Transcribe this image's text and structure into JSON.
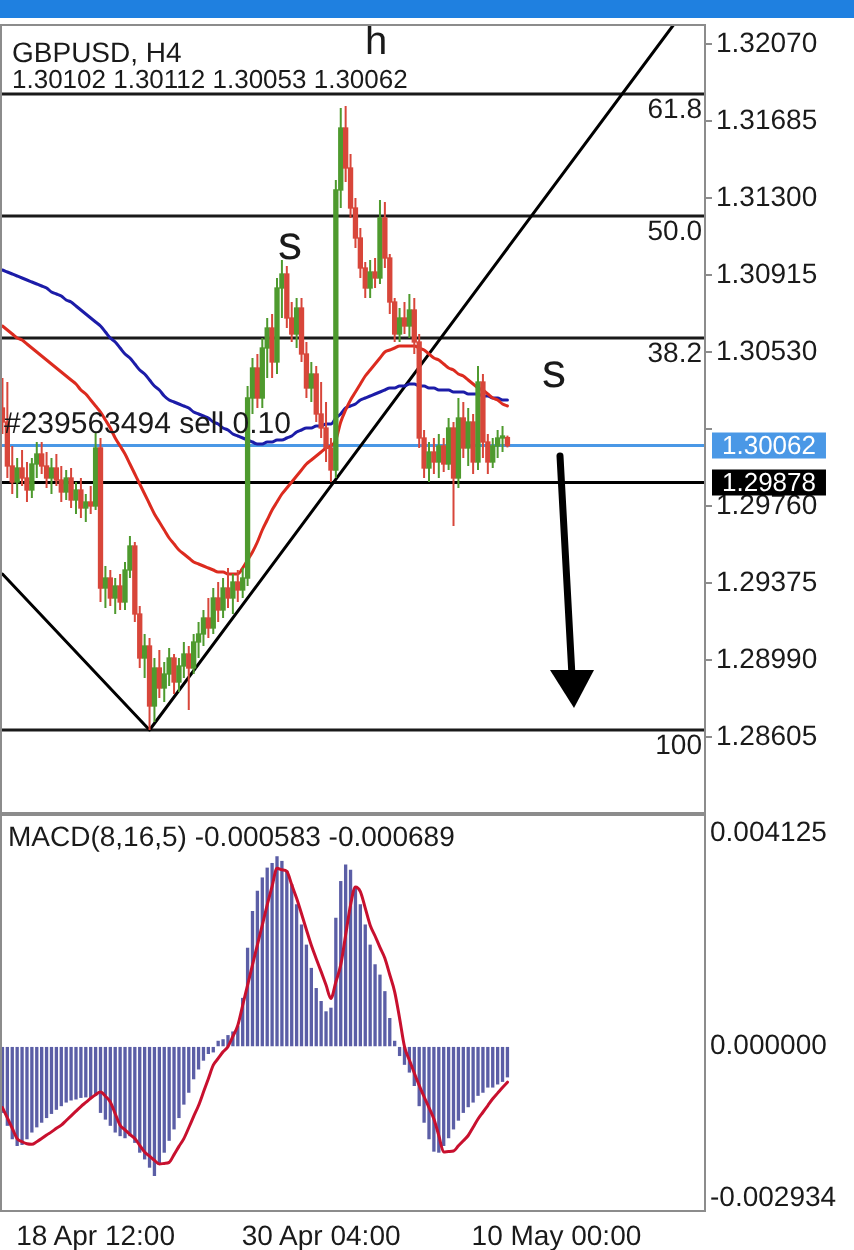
{
  "chart_data": [
    {
      "type": "candlestick",
      "title": "GBPUSD, H4",
      "subtitle": "1.30102 1.30112 1.30053 1.30062",
      "categories": [
        null,
        null,
        null,
        null,
        null,
        null,
        null,
        null,
        null,
        null,
        null,
        null,
        null,
        null,
        null,
        null,
        null,
        null,
        null,
        null,
        null,
        null,
        null,
        null,
        null,
        null,
        null,
        null,
        null,
        null,
        null,
        null,
        null,
        null,
        null,
        null,
        null,
        null,
        null,
        null,
        null,
        null,
        null,
        null,
        null,
        null,
        null,
        null,
        null,
        null,
        null,
        null,
        null,
        null,
        null,
        null,
        null,
        null,
        null,
        null,
        null,
        null,
        null,
        null,
        null,
        null,
        null,
        null,
        null,
        null,
        null,
        null,
        null,
        null,
        null,
        null,
        null,
        null,
        null,
        null,
        null,
        null,
        null,
        null,
        null,
        null,
        null,
        null,
        null,
        null,
        null,
        null,
        null,
        null,
        null,
        null,
        null,
        null,
        null,
        null,
        null,
        null,
        null,
        null,
        null,
        null,
        null,
        null,
        null,
        null,
        null,
        null,
        null,
        null,
        null,
        null,
        null,
        null,
        null,
        null,
        null,
        null,
        null,
        null,
        null,
        null,
        null,
        null,
        null,
        null,
        null,
        null,
        null,
        null,
        null,
        null,
        null,
        null,
        null,
        null,
        null,
        null,
        null,
        null
      ],
      "ohlc": [
        [
          1.3025,
          1.304,
          1.3012,
          1.3018
        ],
        [
          1.3018,
          1.3038,
          1.299,
          1.2996
        ],
        [
          1.2996,
          1.3006,
          1.2982,
          1.2988
        ],
        [
          1.2988,
          1.3,
          1.298,
          1.2995
        ],
        [
          1.2995,
          1.3004,
          1.2986,
          1.299
        ],
        [
          1.299,
          1.2998,
          1.2978,
          1.2984
        ],
        [
          1.2984,
          1.3,
          1.298,
          1.2997
        ],
        [
          1.2997,
          1.3008,
          1.299,
          1.3002
        ],
        [
          1.3002,
          1.3008,
          1.2992,
          1.2996
        ],
        [
          1.2996,
          1.3003,
          1.2985,
          1.299
        ],
        [
          1.299,
          1.3,
          1.2982,
          1.2995
        ],
        [
          1.2995,
          1.3002,
          1.2986,
          1.2989
        ],
        [
          1.2989,
          1.2996,
          1.2978,
          1.2983
        ],
        [
          1.2983,
          1.2994,
          1.2979,
          1.299
        ],
        [
          1.299,
          1.2995,
          1.2975,
          1.2979
        ],
        [
          1.2979,
          1.2988,
          1.2972,
          1.2984
        ],
        [
          1.2984,
          1.299,
          1.297,
          1.2975
        ],
        [
          1.2975,
          1.2982,
          1.2968,
          1.2978
        ],
        [
          1.2978,
          1.2986,
          1.2972,
          1.2976
        ],
        [
          1.2976,
          1.3013,
          1.2974,
          1.3005
        ],
        [
          1.3005,
          1.301,
          1.2928,
          1.2935
        ],
        [
          1.2935,
          1.2946,
          1.2925,
          1.294
        ],
        [
          1.294,
          1.2944,
          1.2926,
          1.293
        ],
        [
          1.293,
          1.294,
          1.2922,
          1.2936
        ],
        [
          1.2936,
          1.2942,
          1.2924,
          1.2928
        ],
        [
          1.2928,
          1.2948,
          1.2924,
          1.2944
        ],
        [
          1.2944,
          1.2961,
          1.294,
          1.2956
        ],
        [
          1.2956,
          1.2958,
          1.2918,
          1.2922
        ],
        [
          1.2922,
          1.2926,
          1.2895,
          1.29
        ],
        [
          1.29,
          1.2912,
          1.289,
          1.2906
        ],
        [
          1.2906,
          1.291,
          1.2864,
          1.2876
        ],
        [
          1.2876,
          1.29,
          1.2868,
          1.2895
        ],
        [
          1.2895,
          1.2904,
          1.288,
          1.2885
        ],
        [
          1.2885,
          1.2898,
          1.2878,
          1.2892
        ],
        [
          1.2892,
          1.2905,
          1.2886,
          1.29
        ],
        [
          1.29,
          1.2902,
          1.2882,
          1.2888
        ],
        [
          1.2888,
          1.29,
          1.2883,
          1.2896
        ],
        [
          1.2896,
          1.2908,
          1.289,
          1.2902
        ],
        [
          1.2902,
          1.2906,
          1.2874,
          1.2895
        ],
        [
          1.2895,
          1.2912,
          1.2892,
          1.2908
        ],
        [
          1.2908,
          1.2918,
          1.29,
          1.2912
        ],
        [
          1.2912,
          1.2924,
          1.2906,
          1.292
        ],
        [
          1.292,
          1.293,
          1.291,
          1.2915
        ],
        [
          1.2915,
          1.2935,
          1.2912,
          1.293
        ],
        [
          1.293,
          1.2938,
          1.2918,
          1.2924
        ],
        [
          1.2924,
          1.294,
          1.292,
          1.2935
        ],
        [
          1.2935,
          1.2945,
          1.2925,
          1.293
        ],
        [
          1.293,
          1.2942,
          1.2922,
          1.2938
        ],
        [
          1.2938,
          1.2944,
          1.2928,
          1.2934
        ],
        [
          1.2934,
          1.2945,
          1.293,
          1.294
        ],
        [
          1.294,
          1.3036,
          1.2936,
          1.303
        ],
        [
          1.303,
          1.305,
          1.3022,
          1.3045
        ],
        [
          1.3045,
          1.3052,
          1.3025,
          1.303
        ],
        [
          1.303,
          1.306,
          1.3025,
          1.3055
        ],
        [
          1.3055,
          1.307,
          1.304,
          1.3065
        ],
        [
          1.3065,
          1.3072,
          1.304,
          1.3048
        ],
        [
          1.3048,
          1.309,
          1.3042,
          1.3085
        ],
        [
          1.3085,
          1.3099,
          1.307,
          1.3092
        ],
        [
          1.3092,
          1.3096,
          1.3065,
          1.307
        ],
        [
          1.307,
          1.3078,
          1.3058,
          1.3062
        ],
        [
          1.3062,
          1.308,
          1.3055,
          1.3075
        ],
        [
          1.3075,
          1.308,
          1.3048,
          1.3052
        ],
        [
          1.3052,
          1.3058,
          1.303,
          1.3035
        ],
        [
          1.3035,
          1.3048,
          1.3028,
          1.3042
        ],
        [
          1.3042,
          1.3046,
          1.3018,
          1.3022
        ],
        [
          1.3022,
          1.3038,
          1.301,
          1.3015
        ],
        [
          1.3015,
          1.3028,
          1.2998,
          1.3005
        ],
        [
          1.3005,
          1.301,
          1.2988,
          1.2994
        ],
        [
          1.2994,
          1.3139,
          1.299,
          1.3134
        ],
        [
          1.3134,
          1.3175,
          1.3125,
          1.3165
        ],
        [
          1.3165,
          1.3176,
          1.3138,
          1.3145
        ],
        [
          1.3145,
          1.3152,
          1.312,
          1.3125
        ],
        [
          1.3125,
          1.313,
          1.3105,
          1.311
        ],
        [
          1.311,
          1.3115,
          1.309,
          1.3095
        ],
        [
          1.3095,
          1.3098,
          1.308,
          1.3085
        ],
        [
          1.3085,
          1.3099,
          1.308,
          1.3093
        ],
        [
          1.3093,
          1.31,
          1.3085,
          1.309
        ],
        [
          1.309,
          1.3129,
          1.3087,
          1.312
        ],
        [
          1.312,
          1.3128,
          1.3095,
          1.31
        ],
        [
          1.31,
          1.3102,
          1.3072,
          1.3078
        ],
        [
          1.3078,
          1.308,
          1.3058,
          1.3062
        ],
        [
          1.3062,
          1.3075,
          1.3058,
          1.307
        ],
        [
          1.307,
          1.3078,
          1.3062,
          1.3066
        ],
        [
          1.3066,
          1.3082,
          1.306,
          1.3074
        ],
        [
          1.3074,
          1.308,
          1.3052,
          1.3058
        ],
        [
          1.3058,
          1.3062,
          1.3005,
          1.301
        ],
        [
          1.301,
          1.3014,
          1.299,
          1.2995
        ],
        [
          1.2995,
          1.3008,
          1.2988,
          1.3003
        ],
        [
          1.3003,
          1.301,
          1.2992,
          1.2998
        ],
        [
          1.2998,
          1.3012,
          1.299,
          1.3006
        ],
        [
          1.3006,
          1.301,
          1.2993,
          1.2997
        ],
        [
          1.2997,
          1.302,
          1.2994,
          1.3015
        ],
        [
          1.3015,
          1.3018,
          1.2966,
          1.299
        ],
        [
          1.299,
          1.303,
          1.2985,
          1.302
        ],
        [
          1.302,
          1.3028,
          1.3,
          1.3005
        ],
        [
          1.3005,
          1.3025,
          1.2996,
          1.3018
        ],
        [
          1.3018,
          1.3022,
          1.2992,
          1.2998
        ],
        [
          1.2998,
          1.3046,
          1.2994,
          1.3038
        ],
        [
          1.3038,
          1.3042,
          1.3,
          1.3008
        ],
        [
          1.3008,
          1.3012,
          1.2992,
          1.2998
        ],
        [
          1.2998,
          1.301,
          1.2995,
          1.3006
        ],
        [
          1.3006,
          1.3014,
          1.3,
          1.301
        ],
        [
          1.301,
          1.3016,
          1.3003,
          1.30102
        ],
        [
          1.30102,
          1.30112,
          1.30053,
          1.30062
        ],
        null,
        null,
        null,
        null,
        null,
        null,
        null,
        null,
        null,
        null,
        null,
        null,
        null,
        null,
        null,
        null,
        null,
        null,
        null,
        null,
        null,
        null,
        null,
        null,
        null,
        null,
        null,
        null,
        null,
        null,
        null,
        null,
        null,
        null,
        null,
        null,
        null,
        null,
        null,
        null
      ],
      "colors": [
        "#d8463a",
        "#d8463a",
        "#d8463a",
        "#4e9a2e",
        "#d8463a",
        "#d8463a",
        "#4e9a2e",
        "#4e9a2e",
        "#d8463a",
        "#d8463a",
        "#4e9a2e",
        "#d8463a",
        "#d8463a",
        "#4e9a2e",
        "#d8463a",
        "#4e9a2e",
        "#d8463a",
        "#4e9a2e",
        "#d8463a",
        "#4e9a2e",
        "#d8463a",
        "#4e9a2e",
        "#d8463a",
        "#4e9a2e",
        "#d8463a",
        "#4e9a2e",
        "#4e9a2e",
        "#d8463a",
        "#d8463a",
        "#4e9a2e",
        "#d8463a",
        "#4e9a2e",
        "#d8463a",
        "#4e9a2e",
        "#4e9a2e",
        "#d8463a",
        "#4e9a2e",
        "#4e9a2e",
        "#d8463a",
        "#4e9a2e",
        "#4e9a2e",
        "#4e9a2e",
        "#d8463a",
        "#4e9a2e",
        "#d8463a",
        "#4e9a2e",
        "#d8463a",
        "#4e9a2e",
        "#d8463a",
        "#4e9a2e",
        "#4e9a2e",
        "#4e9a2e",
        "#d8463a",
        "#4e9a2e",
        "#4e9a2e",
        "#d8463a",
        "#4e9a2e",
        "#4e9a2e",
        "#d8463a",
        "#d8463a",
        "#4e9a2e",
        "#d8463a",
        "#d8463a",
        "#4e9a2e",
        "#d8463a",
        "#d8463a",
        "#d8463a",
        "#d8463a",
        "#4e9a2e",
        "#4e9a2e",
        "#d8463a",
        "#d8463a",
        "#d8463a",
        "#d8463a",
        "#d8463a",
        "#4e9a2e",
        "#d8463a",
        "#4e9a2e",
        "#d8463a",
        "#d8463a",
        "#d8463a",
        "#4e9a2e",
        "#d8463a",
        "#4e9a2e",
        "#d8463a",
        "#d8463a",
        "#d8463a",
        "#4e9a2e",
        "#d8463a",
        "#4e9a2e",
        "#d8463a",
        "#4e9a2e",
        "#d8463a",
        "#4e9a2e",
        "#d8463a",
        "#4e9a2e",
        "#d8463a",
        "#4e9a2e",
        "#d8463a",
        "#d8463a",
        "#4e9a2e",
        "#4e9a2e",
        "#4e9a2e",
        "#d8463a",
        null,
        null,
        null,
        null,
        null,
        null,
        null,
        null,
        null,
        null,
        null,
        null,
        null,
        null,
        null,
        null,
        null,
        null,
        null,
        null,
        null,
        null,
        null,
        null,
        null,
        null,
        null,
        null,
        null,
        null,
        null,
        null,
        null,
        null,
        null,
        null,
        null,
        null,
        null,
        null
      ],
      "series": [
        {
          "type": "line",
          "color": "#dc2b1f",
          "values": [
            1.3066,
            1.3064,
            1.3062,
            1.306,
            1.3059,
            1.3057,
            1.3055,
            1.3053,
            1.3051,
            1.3049,
            1.3047,
            1.3045,
            1.3043,
            1.3041,
            1.3039,
            1.3037,
            1.3034,
            1.3032,
            1.3029,
            1.3026,
            1.3023,
            1.3019,
            1.3015,
            1.301,
            1.3006,
            1.3002,
            1.2997,
            1.2992,
            1.2987,
            1.2982,
            1.2977,
            1.2972,
            1.2968,
            1.2964,
            1.296,
            1.2957,
            1.2954,
            1.2952,
            1.295,
            1.2948,
            1.2947,
            1.2946,
            1.2945,
            1.2944,
            1.2943,
            1.2943,
            1.2942,
            1.2942,
            1.2942,
            1.2945,
            1.2949,
            1.2953,
            1.2958,
            1.2964,
            1.2969,
            1.2974,
            1.2978,
            1.2982,
            1.2985,
            1.2988,
            1.2991,
            1.2994,
            1.2997,
            1.2999,
            1.3001,
            1.3003,
            1.3005,
            1.3006,
            1.3009,
            1.3018,
            1.3024,
            1.3029,
            1.3033,
            1.3037,
            1.3041,
            1.3044,
            1.3047,
            1.305,
            1.3053,
            1.3054,
            1.3055,
            1.3056,
            1.3056,
            1.3056,
            1.3056,
            1.3055,
            1.3054,
            1.3052,
            1.305,
            1.3049,
            1.3047,
            1.3045,
            1.3044,
            1.3042,
            1.3041,
            1.3039,
            1.3037,
            1.3035,
            1.3034,
            1.3032,
            1.303,
            1.3029,
            1.3027,
            1.3026,
            null,
            null,
            null,
            null,
            null,
            null,
            null,
            null,
            null,
            null,
            null,
            null,
            null,
            null,
            null,
            null,
            null,
            null,
            null,
            null,
            null,
            null,
            null,
            null,
            null,
            null,
            null,
            null,
            null,
            null,
            null,
            null,
            null,
            null,
            null,
            null,
            null,
            null,
            null,
            null
          ]
        },
        {
          "type": "line",
          "color": "#1c1ca8",
          "values": [
            1.3094,
            1.3093,
            1.3092,
            1.3091,
            1.309,
            1.3089,
            1.3088,
            1.3087,
            1.3086,
            1.3085,
            1.3083,
            1.3082,
            1.3081,
            1.3079,
            1.3078,
            1.3076,
            1.3074,
            1.3072,
            1.307,
            1.3068,
            1.3066,
            1.3063,
            1.306,
            1.3058,
            1.3055,
            1.3052,
            1.305,
            1.3047,
            1.3044,
            1.3042,
            1.3039,
            1.3036,
            1.3034,
            1.3031,
            1.3029,
            1.3028,
            1.3027,
            1.3026,
            1.3025,
            1.3023,
            1.3022,
            1.3021,
            1.302,
            1.3018,
            1.3017,
            1.3015,
            1.3014,
            1.3012,
            1.3011,
            1.301,
            1.3009,
            1.3008,
            1.3007,
            1.3007,
            1.3008,
            1.3008,
            1.3009,
            1.3009,
            1.301,
            1.3011,
            1.3013,
            1.3014,
            1.3015,
            1.3015,
            1.3016,
            1.3016,
            1.3017,
            1.3017,
            1.302,
            1.3022,
            1.3025,
            1.3026,
            1.3027,
            1.3029,
            1.303,
            1.3031,
            1.3032,
            1.3033,
            1.3034,
            1.3035,
            1.3035,
            1.3036,
            1.3036,
            1.3037,
            1.3037,
            1.3036,
            1.3036,
            1.3035,
            1.3035,
            1.3034,
            1.3034,
            1.3034,
            1.3033,
            1.3033,
            1.3033,
            1.3032,
            1.3032,
            1.3032,
            1.3031,
            1.3031,
            1.303,
            1.303,
            1.3029,
            1.3029,
            null,
            null,
            null,
            null,
            null,
            null,
            null,
            null,
            null,
            null,
            null,
            null,
            null,
            null,
            null,
            null,
            null,
            null,
            null,
            null,
            null,
            null,
            null,
            null,
            null,
            null,
            null,
            null,
            null,
            null,
            null,
            null,
            null,
            null,
            null,
            null,
            null,
            null,
            null,
            null
          ]
        },
        {
          "type": "line",
          "color": "#000000",
          "values": [
            1.2942,
            null,
            null,
            null,
            null,
            null,
            null,
            null,
            null,
            null,
            null,
            null,
            null,
            null,
            null,
            null,
            null,
            null,
            null,
            null,
            null,
            null,
            null,
            null,
            null,
            null,
            null,
            null,
            null,
            null,
            1.2864,
            null,
            null,
            null,
            null,
            null,
            null,
            null,
            null,
            null,
            null,
            null,
            null,
            null,
            null,
            null,
            null,
            null,
            null,
            null,
            null,
            null,
            null,
            null,
            null,
            null,
            null,
            null,
            null,
            null,
            null,
            null,
            null,
            null,
            null,
            null,
            null,
            null,
            null,
            null,
            null,
            null,
            null,
            null,
            null,
            null,
            null,
            null,
            null,
            null,
            null,
            null,
            null,
            null,
            null,
            null,
            null,
            null,
            null,
            null,
            null,
            null,
            null,
            null,
            null,
            null,
            null,
            null,
            null,
            null,
            null,
            null,
            null,
            null,
            null,
            null,
            null,
            null,
            null,
            null,
            null,
            null,
            null,
            null,
            null,
            null,
            null,
            null,
            null,
            null,
            null,
            null,
            null,
            null,
            null,
            null,
            null,
            null,
            null,
            null,
            null,
            null,
            null,
            null,
            null,
            null,
            null,
            1.3217,
            null,
            null,
            null,
            null,
            null,
            null
          ]
        }
      ],
      "ylim": [
        1.2822,
        1.3217
      ],
      "yticks": [
        {
          "value": 1.3207,
          "label": "1.32070"
        },
        1.31685,
        {
          "value": 1.313,
          "label": "1.31300"
        },
        1.30915,
        {
          "value": 1.3053,
          "label": "1.30530"
        },
        {
          "value": 1.30145,
          "label": null
        },
        {
          "value": 1.2976,
          "label": "1.29760"
        },
        1.29375,
        {
          "value": 1.2899,
          "label": "1.28990"
        },
        1.28605
      ],
      "ref_lines": [
        {
          "axis": "y",
          "value": 1.3182
        },
        {
          "axis": "y",
          "value": 1.3121
        },
        {
          "axis": "y",
          "value": 1.306
        },
        {
          "axis": "y",
          "value": 1.2864
        },
        {
          "axis": "y",
          "value": 1.29878,
          "label": "1.29878",
          "color": "#000000"
        },
        {
          "axis": "y",
          "value": 1.30062,
          "label": "1.30062",
          "color": "#4a98e6"
        }
      ],
      "annotations": [
        "h",
        "s",
        "s",
        {
          "text": "#239563494 sell 0.10",
          "y": 1.30062
        },
        {
          "text": "61.8",
          "y": 1.3182
        },
        {
          "text": "50.0",
          "y": 1.3121
        },
        {
          "text": "38.2",
          "y": 1.306
        },
        {
          "text": "100",
          "y": 1.2864
        }
      ],
      "tick_labels": "y"
    },
    {
      "type": "bar",
      "title": "MACD(8,16,5) -0.000583 -0.000689",
      "categories": [
        null,
        null,
        null,
        null,
        null,
        null,
        null,
        null,
        null,
        null,
        null,
        null,
        null,
        null,
        null,
        null,
        null,
        null,
        null,
        "18 Apr 12:00",
        null,
        null,
        null,
        null,
        null,
        null,
        null,
        null,
        null,
        null,
        null,
        null,
        null,
        null,
        null,
        null,
        null,
        null,
        null,
        null,
        null,
        null,
        null,
        null,
        null,
        null,
        null,
        null,
        null,
        null,
        null,
        null,
        null,
        null,
        null,
        null,
        null,
        null,
        null,
        null,
        null,
        null,
        null,
        null,
        null,
        "30 Apr 04:00",
        null,
        null,
        null,
        null,
        null,
        null,
        null,
        null,
        null,
        null,
        null,
        null,
        null,
        null,
        null,
        null,
        null,
        null,
        null,
        null,
        null,
        null,
        null,
        null,
        null,
        null,
        null,
        null,
        null,
        null,
        null,
        null,
        null,
        null,
        null,
        null,
        null,
        null,
        null,
        null,
        null,
        null,
        null,
        null,
        null,
        null,
        null,
        "10 May 00:00",
        null,
        null,
        null,
        null,
        null,
        null,
        null,
        null,
        null,
        null,
        null,
        null,
        null,
        null,
        null,
        null,
        null,
        null,
        null,
        null,
        null,
        null,
        null,
        null,
        null,
        null,
        null,
        null,
        null,
        null
      ],
      "series": [
        {
          "type": "bar",
          "color": "#5b5ea6",
          "values": [
            -0.00127,
            -0.00152,
            -0.00178,
            -0.00191,
            -0.00189,
            -0.00178,
            -0.00165,
            -0.00155,
            -0.00146,
            -0.00137,
            -0.00129,
            -0.00121,
            -0.00114,
            -0.00107,
            -0.00103,
            -0.00101,
            -0.00098,
            -0.00097,
            -0.00098,
            -0.00094,
            -0.00127,
            -0.0014,
            -0.00152,
            -0.00165,
            -0.00172,
            -0.00176,
            -0.00172,
            -0.00185,
            -0.00204,
            -0.00217,
            -0.00233,
            -0.00249,
            -0.00227,
            -0.00204,
            -0.00181,
            -0.00159,
            -0.00137,
            -0.00111,
            -0.00088,
            -0.00062,
            -0.00043,
            -0.00026,
            -0.00013,
            -0.0001,
            0.0001,
            0.00013,
            0.00021,
            0.00028,
            0.00039,
            0.00093,
            0.0019,
            0.00261,
            0.003,
            0.00326,
            0.00345,
            0.00354,
            0.00367,
            0.00358,
            0.00339,
            0.00313,
            0.00274,
            0.00235,
            0.00196,
            0.00151,
            0.00112,
            0.00087,
            0.00067,
            0.00074,
            0.00248,
            0.00319,
            0.00351,
            0.00341,
            0.00306,
            0.00274,
            0.00235,
            0.00196,
            0.00158,
            0.00138,
            0.00106,
            0.00054,
            0.0001,
            -0.00017,
            -0.00034,
            -0.00049,
            -0.00075,
            -0.00114,
            -0.00146,
            -0.00178,
            -0.00202,
            -0.00204,
            -0.00191,
            -0.00176,
            -0.00159,
            -0.00142,
            -0.00127,
            -0.00116,
            -0.00107,
            -0.00094,
            -0.00088,
            -0.00078,
            -0.00078,
            -0.00072,
            -0.00067,
            -0.000583,
            null,
            null,
            null,
            null,
            null,
            null,
            null,
            null,
            null,
            null,
            null,
            null,
            null,
            null,
            null,
            null,
            null,
            null,
            null,
            null,
            null,
            null,
            null,
            null,
            null,
            null,
            null,
            null,
            null,
            null,
            null,
            null,
            null,
            null,
            null,
            null,
            null,
            null,
            null,
            null
          ]
        },
        {
          "type": "line",
          "color": "#c8102e",
          "values": [
            -0.00118,
            -0.00138,
            -0.00158,
            -0.00178,
            -0.00184,
            -0.00188,
            -0.00189,
            -0.00184,
            -0.00178,
            -0.00171,
            -0.00165,
            -0.00158,
            -0.00152,
            -0.00143,
            -0.00134,
            -0.00125,
            -0.00116,
            -0.00108,
            -0.001,
            -0.00093,
            -0.00088,
            -0.00096,
            -0.00107,
            -0.0013,
            -0.00152,
            -0.00161,
            -0.0017,
            -0.00178,
            -0.00191,
            -0.00204,
            -0.00212,
            -0.0022,
            -0.00227,
            -0.00226,
            -0.00224,
            -0.00209,
            -0.00193,
            -0.00178,
            -0.00157,
            -0.00135,
            -0.00114,
            -0.00088,
            -0.00062,
            -0.00036,
            -0.00023,
            -0.0001,
            0,
            0.0002,
            0.00041,
            0.0008,
            0.00119,
            0.00158,
            0.00197,
            0.00235,
            0.00274,
            0.0031,
            0.00345,
            0.00342,
            0.00339,
            0.00313,
            0.00287,
            0.00257,
            0.00226,
            0.00196,
            0.0017,
            0.00145,
            0.00119,
            0.00093,
            0.00125,
            0.00158,
            0.00216,
            0.00274,
            0.00309,
            0.003,
            0.00268,
            0.00235,
            0.00214,
            0.00192,
            0.00171,
            0.00139,
            0.00106,
            0.00055,
            0,
            -0.00026,
            -0.00051,
            -0.00075,
            -0.00097,
            -0.00118,
            -0.0014,
            -0.00172,
            -0.00204,
            -0.00203,
            -0.00202,
            -0.00192,
            -0.00182,
            -0.00172,
            -0.00156,
            -0.0014,
            -0.00127,
            -0.00114,
            -0.00101,
            -0.0009,
            -0.00079,
            -0.000689,
            null,
            null,
            null,
            null,
            null,
            null,
            null,
            null,
            null,
            null,
            null,
            null,
            null,
            null,
            null,
            null,
            null,
            null,
            null,
            null,
            null,
            null,
            null,
            null,
            null,
            null,
            null,
            null,
            null,
            null,
            null,
            null,
            null,
            null,
            null,
            null,
            null,
            null,
            null,
            null
          ]
        }
      ],
      "ylim": [
        -0.0032,
        0.0045
      ],
      "yticks": [
        -0.002934,
        {
          "value": 0,
          "label": "0.000000"
        },
        0.004125
      ]
    }
  ]
}
